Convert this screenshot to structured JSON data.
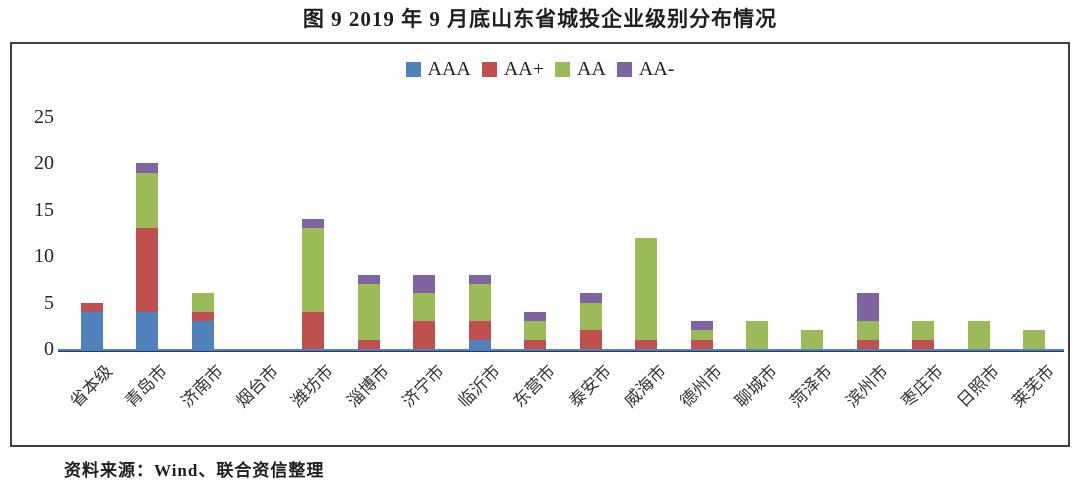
{
  "page": {
    "title": "图 9  2019 年 9 月底山东省城投企业级别分布情况",
    "source_note": "资料来源：Wind、联合资信整理"
  },
  "colors": {
    "aaa_blue": "#4F81BD",
    "aa_plus_red": "#C0504D",
    "aa_green": "#9BBB59",
    "aa_minus_purple": "#8064A2",
    "axis_line": "#4F81BD",
    "axis_line_edge": "#1F3B63",
    "frame_border": "#404040",
    "text": "#1f1f1f"
  },
  "chart_data": {
    "type": "bar",
    "stacked": true,
    "title": "图 9  2019 年 9 月底山东省城投企业级别分布情况",
    "categories": [
      "省本级",
      "青岛市",
      "济南市",
      "烟台市",
      "潍坊市",
      "淄博市",
      "济宁市",
      "临沂市",
      "东营市",
      "泰安市",
      "威海市",
      "德州市",
      "聊城市",
      "菏泽市",
      "滨州市",
      "枣庄市",
      "日照市",
      "莱芜市"
    ],
    "series": [
      {
        "name": "AAA",
        "color": "#4F81BD",
        "values": [
          4,
          4,
          3,
          0,
          0,
          0,
          0,
          1,
          0,
          0,
          0,
          0,
          0,
          0,
          0,
          0,
          0,
          0
        ]
      },
      {
        "name": "AA+",
        "color": "#C0504D",
        "values": [
          1,
          9,
          1,
          0,
          4,
          1,
          3,
          2,
          1,
          2,
          1,
          1,
          0,
          0,
          1,
          1,
          0,
          0
        ]
      },
      {
        "name": "AA",
        "color": "#9BBB59",
        "values": [
          0,
          6,
          2,
          0,
          9,
          6,
          3,
          4,
          2,
          3,
          11,
          1,
          3,
          2,
          2,
          2,
          3,
          2
        ]
      },
      {
        "name": "AA-",
        "color": "#8064A2",
        "values": [
          0,
          1,
          0,
          0,
          1,
          1,
          2,
          1,
          1,
          1,
          0,
          1,
          0,
          0,
          3,
          0,
          0,
          0
        ]
      }
    ],
    "totals": [
      5,
      20,
      6,
      0,
      14,
      8,
      8,
      8,
      4,
      6,
      12,
      3,
      3,
      2,
      6,
      3,
      3,
      2
    ],
    "y_ticks": [
      0,
      5,
      10,
      15,
      20,
      25
    ],
    "ylim": [
      0,
      25
    ],
    "xlabel": "",
    "ylabel": "",
    "grid": false,
    "legend_position": "top-center",
    "x_tick_rotation_deg": 45
  }
}
